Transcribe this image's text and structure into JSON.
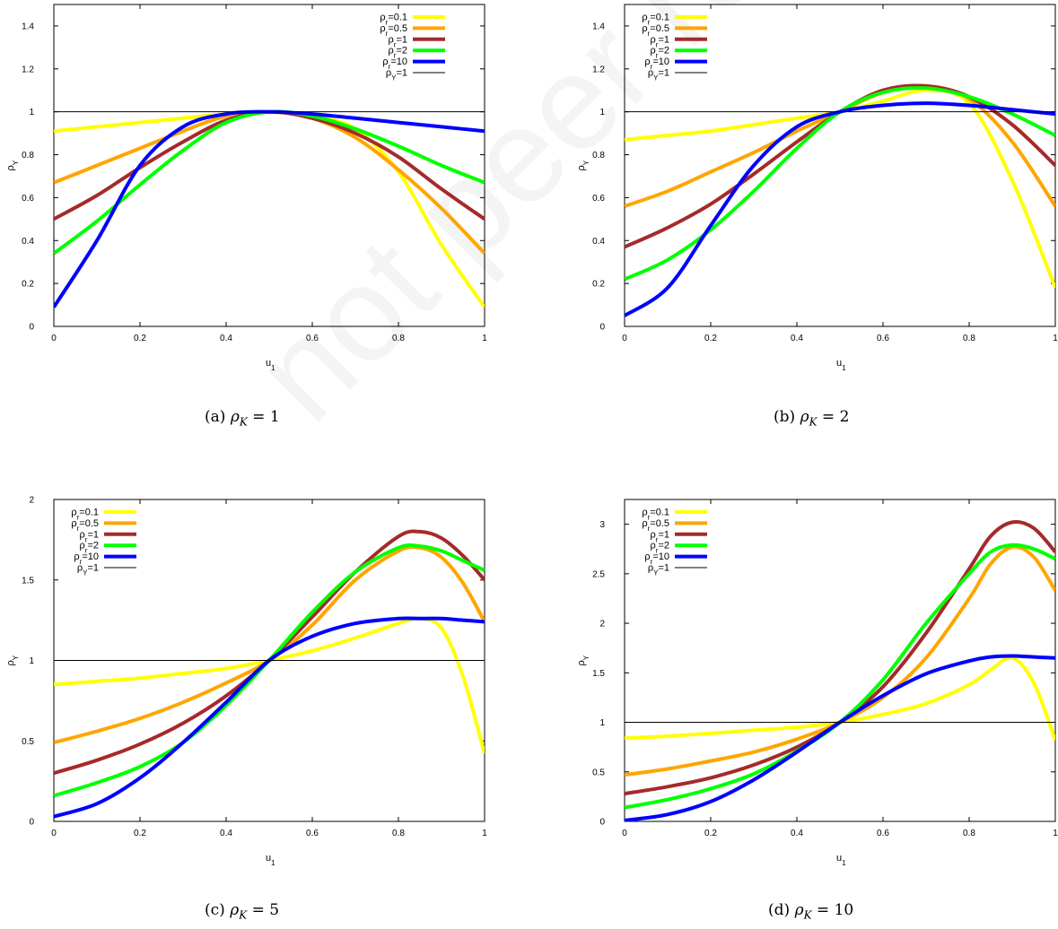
{
  "colors": {
    "yellow": "#ffff00",
    "orange": "#ffa500",
    "brown": "#a52a2a",
    "green": "#00ff00",
    "blue": "#0000ff",
    "black": "#000000"
  },
  "watermark": "not peer reviewed",
  "chart_data": [
    {
      "type": "line",
      "caption": {
        "prefix": "(a) ",
        "symbol": "ρ",
        "sub": "K",
        "rest": " = 1"
      },
      "xlabel": "u1",
      "ylabel": "ρY",
      "xlim": [
        0,
        1
      ],
      "ylim": [
        0,
        1.5
      ],
      "xticks": [
        "0",
        "0.2",
        "0.4",
        "0.6",
        "0.8",
        "1"
      ],
      "yticks": [
        {
          "v": 0,
          "label": "0"
        },
        {
          "v": 0.2,
          "label": "0.2"
        },
        {
          "v": 0.4,
          "label": "0.4"
        },
        {
          "v": 0.6,
          "label": "0.6"
        },
        {
          "v": 0.8,
          "label": "0.8"
        },
        {
          "v": 1,
          "label": "1"
        },
        {
          "v": 1.2,
          "label": "1.2"
        },
        {
          "v": 1.4,
          "label": "1.4"
        }
      ],
      "legend": "top-right",
      "series": [
        {
          "name": "ρr=0.1",
          "color": "#ffff00",
          "x": [
            0,
            0.1,
            0.2,
            0.3,
            0.4,
            0.5,
            0.6,
            0.7,
            0.8,
            0.9,
            1
          ],
          "y": [
            0.91,
            0.93,
            0.95,
            0.97,
            0.99,
            1.0,
            0.98,
            0.92,
            0.72,
            0.38,
            0.09
          ]
        },
        {
          "name": "ρr=0.5",
          "color": "#ffa500",
          "x": [
            0,
            0.1,
            0.2,
            0.3,
            0.4,
            0.5,
            0.6,
            0.7,
            0.8,
            0.9,
            1
          ],
          "y": [
            0.67,
            0.75,
            0.83,
            0.91,
            0.98,
            1.0,
            0.97,
            0.88,
            0.73,
            0.55,
            0.34
          ]
        },
        {
          "name": "ρr=1",
          "color": "#a52a2a",
          "x": [
            0,
            0.1,
            0.2,
            0.3,
            0.4,
            0.5,
            0.6,
            0.7,
            0.8,
            0.9,
            1
          ],
          "y": [
            0.5,
            0.61,
            0.74,
            0.86,
            0.96,
            1.0,
            0.97,
            0.9,
            0.79,
            0.64,
            0.5
          ]
        },
        {
          "name": "ρr=2",
          "color": "#00ff00",
          "x": [
            0,
            0.1,
            0.2,
            0.3,
            0.4,
            0.5,
            0.6,
            0.7,
            0.8,
            0.9,
            1
          ],
          "y": [
            0.34,
            0.49,
            0.66,
            0.82,
            0.95,
            1.0,
            0.98,
            0.92,
            0.84,
            0.75,
            0.67
          ]
        },
        {
          "name": "ρr=10",
          "color": "#0000ff",
          "x": [
            0,
            0.1,
            0.2,
            0.3,
            0.4,
            0.5,
            0.6,
            0.7,
            0.8,
            0.9,
            1
          ],
          "y": [
            0.09,
            0.4,
            0.75,
            0.93,
            0.99,
            1.0,
            0.99,
            0.97,
            0.95,
            0.93,
            0.91
          ]
        },
        {
          "name": "ρY=1",
          "color": "#000000",
          "x": [
            0,
            1
          ],
          "y": [
            1,
            1
          ]
        }
      ]
    },
    {
      "type": "line",
      "caption": {
        "prefix": "(b) ",
        "symbol": "ρ",
        "sub": "K",
        "rest": " = 2"
      },
      "xlabel": "u1",
      "ylabel": "ρY",
      "xlim": [
        0,
        1
      ],
      "ylim": [
        0,
        1.5
      ],
      "xticks": [
        "0",
        "0.2",
        "0.4",
        "0.6",
        "0.8",
        "1"
      ],
      "yticks": [
        {
          "v": 0,
          "label": "0"
        },
        {
          "v": 0.2,
          "label": "0.2"
        },
        {
          "v": 0.4,
          "label": "0.4"
        },
        {
          "v": 0.6,
          "label": "0.6"
        },
        {
          "v": 0.8,
          "label": "0.8"
        },
        {
          "v": 1,
          "label": "1"
        },
        {
          "v": 1.2,
          "label": "1.2"
        },
        {
          "v": 1.4,
          "label": "1.4"
        }
      ],
      "legend": "top-left",
      "series": [
        {
          "name": "ρr=0.1",
          "color": "#ffff00",
          "x": [
            0,
            0.1,
            0.2,
            0.3,
            0.4,
            0.5,
            0.6,
            0.7,
            0.8,
            0.9,
            1
          ],
          "y": [
            0.87,
            0.89,
            0.91,
            0.94,
            0.97,
            1.0,
            1.05,
            1.1,
            1.04,
            0.68,
            0.18
          ]
        },
        {
          "name": "ρr=0.5",
          "color": "#ffa500",
          "x": [
            0,
            0.1,
            0.2,
            0.3,
            0.4,
            0.5,
            0.6,
            0.7,
            0.8,
            0.9,
            1
          ],
          "y": [
            0.56,
            0.63,
            0.72,
            0.81,
            0.91,
            1.0,
            1.09,
            1.12,
            1.06,
            0.86,
            0.56
          ]
        },
        {
          "name": "ρr=1",
          "color": "#a52a2a",
          "x": [
            0,
            0.1,
            0.2,
            0.3,
            0.4,
            0.5,
            0.6,
            0.7,
            0.8,
            0.9,
            1
          ],
          "y": [
            0.37,
            0.46,
            0.57,
            0.71,
            0.86,
            1.0,
            1.1,
            1.12,
            1.07,
            0.94,
            0.75
          ]
        },
        {
          "name": "ρr=2",
          "color": "#00ff00",
          "x": [
            0,
            0.1,
            0.2,
            0.3,
            0.4,
            0.5,
            0.6,
            0.7,
            0.8,
            0.9,
            1
          ],
          "y": [
            0.22,
            0.31,
            0.45,
            0.63,
            0.83,
            1.0,
            1.09,
            1.11,
            1.07,
            0.99,
            0.89
          ]
        },
        {
          "name": "ρr=10",
          "color": "#0000ff",
          "x": [
            0,
            0.1,
            0.2,
            0.3,
            0.4,
            0.5,
            0.6,
            0.7,
            0.8,
            0.9,
            1
          ],
          "y": [
            0.05,
            0.18,
            0.47,
            0.75,
            0.93,
            1.0,
            1.03,
            1.04,
            1.03,
            1.01,
            0.99
          ]
        },
        {
          "name": "ρY=1",
          "color": "#000000",
          "x": [
            0,
            1
          ],
          "y": [
            1,
            1
          ]
        }
      ]
    },
    {
      "type": "line",
      "caption": {
        "prefix": "(c) ",
        "symbol": "ρ",
        "sub": "K",
        "rest": " = 5"
      },
      "xlabel": "u1",
      "ylabel": "ρY",
      "xlim": [
        0,
        1
      ],
      "ylim": [
        0,
        2
      ],
      "xticks": [
        "0",
        "0.2",
        "0.4",
        "0.6",
        "0.8",
        "1"
      ],
      "yticks": [
        {
          "v": 0,
          "label": "0"
        },
        {
          "v": 0.5,
          "label": "0.5"
        },
        {
          "v": 1,
          "label": "1"
        },
        {
          "v": 1.5,
          "label": "1.5"
        },
        {
          "v": 2,
          "label": "2"
        }
      ],
      "legend": "top-left",
      "series": [
        {
          "name": "ρr=0.1",
          "color": "#ffff00",
          "x": [
            0,
            0.1,
            0.2,
            0.3,
            0.4,
            0.5,
            0.6,
            0.7,
            0.8,
            0.85,
            0.9,
            0.95,
            1
          ],
          "y": [
            0.85,
            0.87,
            0.89,
            0.92,
            0.95,
            1.0,
            1.06,
            1.14,
            1.23,
            1.26,
            1.2,
            0.9,
            0.42
          ]
        },
        {
          "name": "ρr=0.5",
          "color": "#ffa500",
          "x": [
            0,
            0.1,
            0.2,
            0.3,
            0.4,
            0.5,
            0.6,
            0.7,
            0.8,
            0.85,
            0.9,
            0.95,
            1
          ],
          "y": [
            0.49,
            0.56,
            0.64,
            0.74,
            0.86,
            1.0,
            1.22,
            1.5,
            1.68,
            1.7,
            1.64,
            1.48,
            1.24
          ]
        },
        {
          "name": "ρr=1",
          "color": "#a52a2a",
          "x": [
            0,
            0.1,
            0.2,
            0.3,
            0.4,
            0.5,
            0.6,
            0.7,
            0.8,
            0.85,
            0.9,
            0.95,
            1
          ],
          "y": [
            0.3,
            0.38,
            0.48,
            0.61,
            0.78,
            1.0,
            1.27,
            1.55,
            1.77,
            1.8,
            1.76,
            1.65,
            1.5
          ]
        },
        {
          "name": "ρr=2",
          "color": "#00ff00",
          "x": [
            0,
            0.1,
            0.2,
            0.3,
            0.4,
            0.5,
            0.6,
            0.7,
            0.8,
            0.85,
            0.9,
            0.95,
            1
          ],
          "y": [
            0.16,
            0.24,
            0.34,
            0.49,
            0.72,
            1.0,
            1.3,
            1.55,
            1.7,
            1.71,
            1.68,
            1.62,
            1.56
          ]
        },
        {
          "name": "ρr=10",
          "color": "#0000ff",
          "x": [
            0,
            0.1,
            0.2,
            0.3,
            0.4,
            0.5,
            0.6,
            0.7,
            0.8,
            0.85,
            0.9,
            0.95,
            1
          ],
          "y": [
            0.03,
            0.11,
            0.27,
            0.49,
            0.74,
            1.0,
            1.15,
            1.23,
            1.26,
            1.26,
            1.26,
            1.25,
            1.24
          ]
        },
        {
          "name": "ρY=1",
          "color": "#000000",
          "x": [
            0,
            1
          ],
          "y": [
            1,
            1
          ]
        }
      ]
    },
    {
      "type": "line",
      "caption": {
        "prefix": "(d) ",
        "symbol": "ρ",
        "sub": "K",
        "rest": " = 10"
      },
      "xlabel": "u1",
      "ylabel": "ρY",
      "xlim": [
        0,
        1
      ],
      "ylim": [
        0,
        3.25
      ],
      "xticks": [
        "0",
        "0.2",
        "0.4",
        "0.6",
        "0.8",
        "1"
      ],
      "yticks": [
        {
          "v": 0,
          "label": "0"
        },
        {
          "v": 0.5,
          "label": "0.5"
        },
        {
          "v": 1,
          "label": "1"
        },
        {
          "v": 1.5,
          "label": "1.5"
        },
        {
          "v": 2,
          "label": "2"
        },
        {
          "v": 2.5,
          "label": "2.5"
        },
        {
          "v": 3,
          "label": "3"
        }
      ],
      "legend": "top-left",
      "series": [
        {
          "name": "ρr=0.1",
          "color": "#ffff00",
          "x": [
            0,
            0.1,
            0.2,
            0.3,
            0.4,
            0.5,
            0.6,
            0.7,
            0.8,
            0.85,
            0.9,
            0.95,
            1
          ],
          "y": [
            0.84,
            0.86,
            0.89,
            0.92,
            0.95,
            1.0,
            1.08,
            1.19,
            1.38,
            1.53,
            1.65,
            1.4,
            0.82
          ]
        },
        {
          "name": "ρr=0.5",
          "color": "#ffa500",
          "x": [
            0,
            0.1,
            0.2,
            0.3,
            0.4,
            0.5,
            0.6,
            0.7,
            0.8,
            0.85,
            0.9,
            0.95,
            1
          ],
          "y": [
            0.47,
            0.53,
            0.61,
            0.7,
            0.83,
            1.0,
            1.25,
            1.65,
            2.25,
            2.6,
            2.77,
            2.67,
            2.33
          ]
        },
        {
          "name": "ρr=1",
          "color": "#a52a2a",
          "x": [
            0,
            0.1,
            0.2,
            0.3,
            0.4,
            0.5,
            0.6,
            0.7,
            0.8,
            0.85,
            0.9,
            0.95,
            1
          ],
          "y": [
            0.28,
            0.35,
            0.44,
            0.57,
            0.75,
            1.0,
            1.36,
            1.9,
            2.55,
            2.88,
            3.02,
            2.96,
            2.72
          ]
        },
        {
          "name": "ρr=2",
          "color": "#00ff00",
          "x": [
            0,
            0.1,
            0.2,
            0.3,
            0.4,
            0.5,
            0.6,
            0.7,
            0.8,
            0.85,
            0.9,
            0.95,
            1
          ],
          "y": [
            0.14,
            0.22,
            0.33,
            0.48,
            0.71,
            1.0,
            1.43,
            2.0,
            2.5,
            2.72,
            2.79,
            2.75,
            2.65
          ]
        },
        {
          "name": "ρr=10",
          "color": "#0000ff",
          "x": [
            0,
            0.1,
            0.2,
            0.3,
            0.4,
            0.5,
            0.6,
            0.7,
            0.8,
            0.85,
            0.9,
            0.95,
            1
          ],
          "y": [
            0.01,
            0.07,
            0.2,
            0.42,
            0.7,
            1.0,
            1.27,
            1.49,
            1.62,
            1.66,
            1.67,
            1.66,
            1.65
          ]
        },
        {
          "name": "ρY=1",
          "color": "#000000",
          "x": [
            0,
            1
          ],
          "y": [
            1,
            1
          ]
        }
      ]
    }
  ]
}
